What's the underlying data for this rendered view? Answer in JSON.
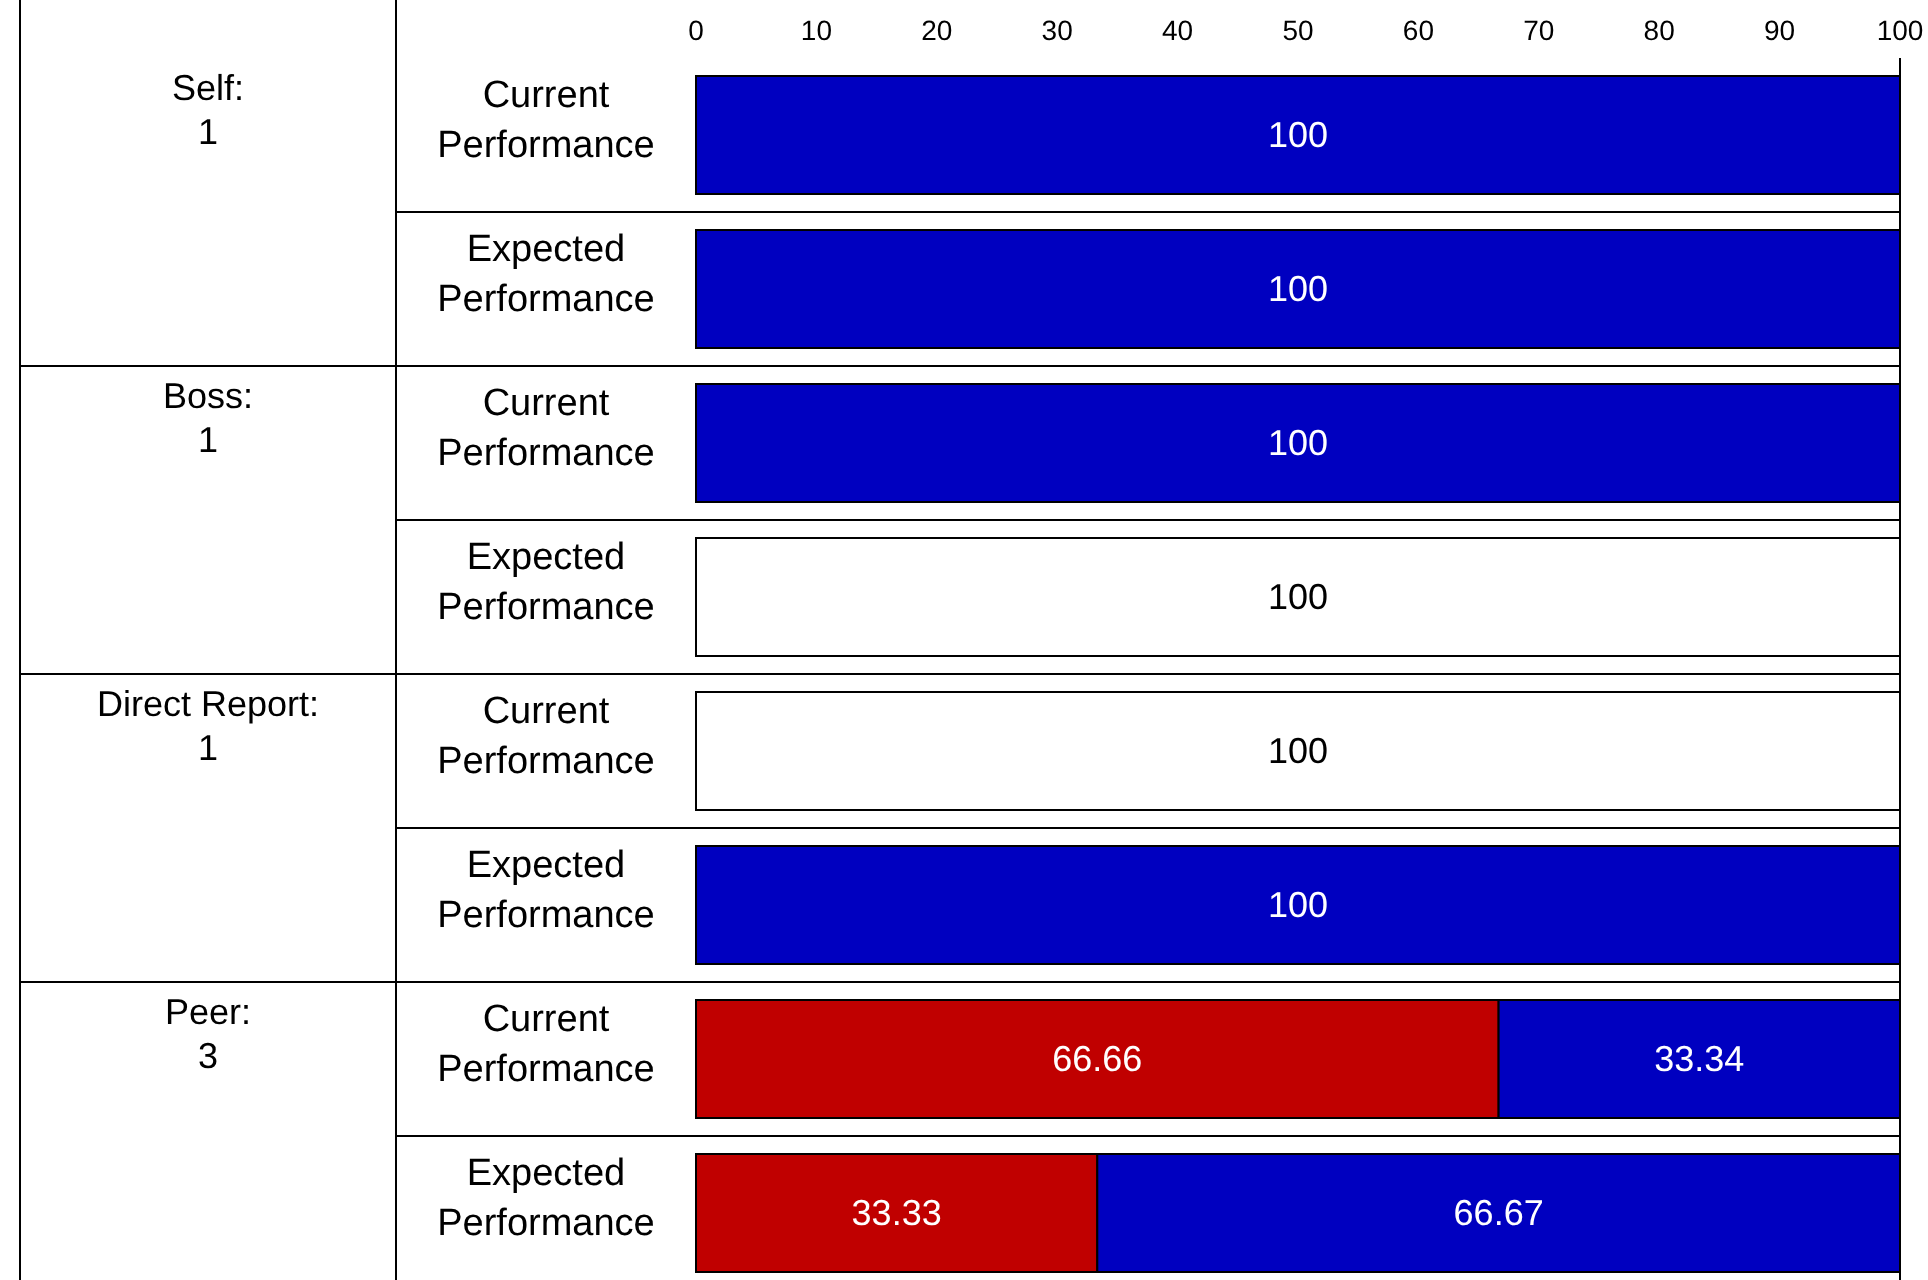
{
  "chart_data": {
    "type": "bar",
    "orientation": "horizontal",
    "stacked": true,
    "data_labels": true,
    "categories": [
      "Current Performance",
      "Expected Performance",
      "Current Performance",
      "Expected Performance",
      "Current Performance",
      "Expected Performance",
      "Current Performance",
      "Expected Performance"
    ],
    "series": [
      {
        "color": "#c00000",
        "values": [
          null,
          null,
          null,
          null,
          null,
          null,
          66.66,
          33.33
        ]
      },
      {
        "color": "#0000c0",
        "values": [
          100,
          100,
          100,
          null,
          null,
          100,
          33.34,
          66.67
        ]
      },
      {
        "color": "#ffffff",
        "values": [
          null,
          null,
          null,
          100,
          100,
          null,
          null,
          null
        ]
      }
    ],
    "xlim": [
      0,
      100
    ],
    "xticks": [
      0,
      10,
      20,
      30,
      40,
      50,
      60,
      70,
      80,
      90,
      100
    ],
    "annotations": [
      "Self:\n1",
      "Boss:\n1",
      "Direct Report:\n1",
      "Peer:\n3"
    ]
  }
}
